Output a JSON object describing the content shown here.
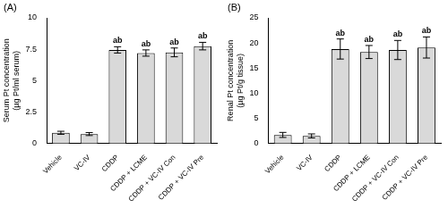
{
  "chart_data": [
    {
      "type": "bar",
      "panel": "(A)",
      "y_label": "Serum Pt concentration\n(µg Pt/ml serum)",
      "categories": [
        "Vehicle",
        "VC-IV",
        "CDDP",
        "CDDP + LCME",
        "CDDP + VC-IV Con",
        "CDDP + VC-IV Pre"
      ],
      "values": [
        0.85,
        0.75,
        7.45,
        7.2,
        7.25,
        7.75
      ],
      "errors": [
        0.12,
        0.12,
        0.25,
        0.25,
        0.35,
        0.3
      ],
      "annotations": [
        null,
        null,
        "ab",
        "ab",
        "ab",
        "ab"
      ],
      "color": "#d9d9d9",
      "ylim": [
        0,
        10
      ],
      "yticks": [
        0,
        2.5,
        5,
        7.5,
        10
      ],
      "grid": false
    },
    {
      "type": "bar",
      "panel": "(B)",
      "y_label": "Renal Pt concentration\n(µg Pt/g tissue)",
      "categories": [
        "Vehicle",
        "VC-IV",
        "CDDP",
        "CDDP + LCME",
        "CDDP + VC-IV Con",
        "CDDP + VC-IV Pre"
      ],
      "values": [
        1.7,
        1.5,
        18.8,
        18.2,
        18.6,
        19.1
      ],
      "errors": [
        0.5,
        0.4,
        2.0,
        1.3,
        1.9,
        2.1
      ],
      "annotations": [
        null,
        null,
        "ab",
        "ab",
        "ab",
        "ab"
      ],
      "color": "#d9d9d9",
      "ylim": [
        0,
        25
      ],
      "yticks": [
        0,
        5,
        10,
        15,
        20,
        25
      ],
      "grid": false
    }
  ]
}
